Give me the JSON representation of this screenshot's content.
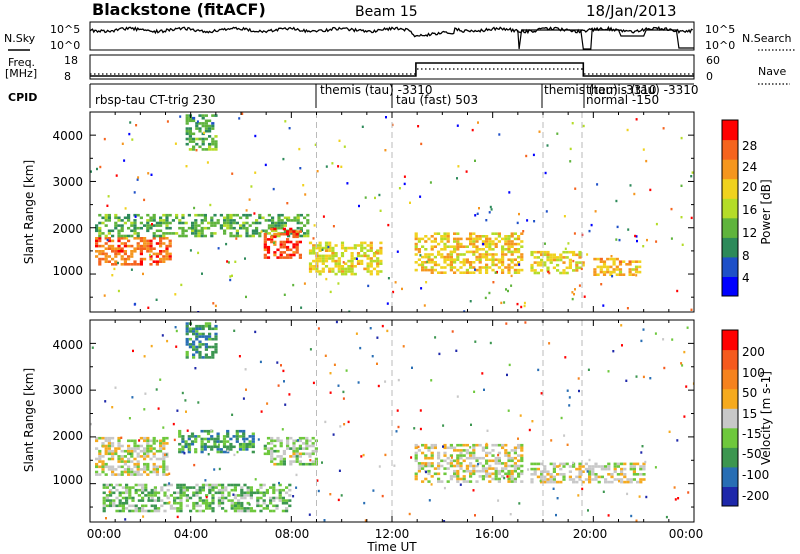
{
  "header": {
    "station": "Blackstone (fitACF)",
    "beam": "Beam 15",
    "date": "18/Jan/2013"
  },
  "left_labels": {
    "nsky": "N.Sky",
    "freq_line1": "Freq.",
    "freq_line2": "[MHz]",
    "cpid": "CPID"
  },
  "right_labels": {
    "nsearch": "N.Search",
    "nave": "Nave"
  },
  "noise_panel": {
    "left_ticks": [
      "10^5",
      "10^0"
    ],
    "right_ticks": [
      "10^5",
      "10^0"
    ]
  },
  "freq_panel": {
    "left_ticks": [
      "18",
      "8"
    ],
    "right_ticks": [
      "60",
      "0"
    ]
  },
  "cpid_segments": [
    {
      "label": "rbsp-tau CT-trig 230",
      "start_hour": 0.0
    },
    {
      "label": "themis (tau) -3310",
      "start_hour": 9.0
    },
    {
      "label": "tau (fast) 503",
      "start_hour": 12.0
    },
    {
      "label": "themis (tau) -3310",
      "start_hour": 18.0
    },
    {
      "label": "themis (tau) -3310",
      "start_hour": 19.55
    },
    {
      "label": "normal -150",
      "start_hour": 19.55
    }
  ],
  "x_axis": {
    "label": "Time UT",
    "ticks": [
      "00:00",
      "04:00",
      "08:00",
      "12:00",
      "16:00",
      "20:00",
      "00:00"
    ],
    "range_hours": [
      0,
      24
    ]
  },
  "power_panel": {
    "ylabel": "Slant Range [km]",
    "yticks": [
      "4000",
      "3000",
      "2000",
      "1000"
    ],
    "colorbar_label": "Power [dB]",
    "colorbar_ticks": [
      "28",
      "24",
      "20",
      "16",
      "12",
      "8",
      "4"
    ],
    "colors": [
      "#0000ff",
      "#1e50c8",
      "#2d8a5a",
      "#5fb43c",
      "#b4dc28",
      "#f0d21e",
      "#f5961e",
      "#f5641e",
      "#ff0000"
    ]
  },
  "velocity_panel": {
    "ylabel": "Slant Range [km]",
    "yticks": [
      "4000",
      "3000",
      "2000",
      "1000"
    ],
    "colorbar_label": "Velocity [m s-1]",
    "colorbar_ticks": [
      "200",
      "100",
      "50",
      "15",
      "-15",
      "-50",
      "-100",
      "-200"
    ],
    "colors": [
      "#1e28aa",
      "#286eb4",
      "#3c9650",
      "#6ec83c",
      "#c8c8c8",
      "#f5aa1e",
      "#f5821e",
      "#f55a1e",
      "#ff0000"
    ]
  },
  "chart_data": {
    "type": "heatmap",
    "title": "Blackstone (fitACF)",
    "xlabel": "Time UT",
    "ylabel": "Slant Range [km]",
    "xlim_hours": [
      0,
      24
    ],
    "ylim_km": [
      180,
      4500
    ],
    "panels": [
      {
        "name": "Power",
        "unit": "dB",
        "color_range": [
          0,
          30
        ],
        "features": [
          {
            "t0": 0.2,
            "t1": 3.2,
            "r0": 1200,
            "r1": 1800,
            "v": 24
          },
          {
            "t0": 0.2,
            "t1": 8.7,
            "r0": 1800,
            "r1": 2300,
            "v": 11
          },
          {
            "t0": 3.8,
            "t1": 5.0,
            "r0": 3700,
            "r1": 4450,
            "v": 10
          },
          {
            "t0": 6.9,
            "t1": 8.3,
            "r0": 1350,
            "r1": 2000,
            "v": 26
          },
          {
            "t0": 8.7,
            "t1": 11.5,
            "r0": 1000,
            "r1": 1700,
            "v": 17
          },
          {
            "t0": 12.9,
            "t1": 17.2,
            "r0": 1050,
            "r1": 1900,
            "v": 19
          },
          {
            "t0": 17.5,
            "t1": 19.6,
            "r0": 1050,
            "r1": 1500,
            "v": 18
          },
          {
            "t0": 20.0,
            "t1": 21.9,
            "r0": 1000,
            "r1": 1350,
            "v": 20
          }
        ]
      },
      {
        "name": "Velocity",
        "unit": "m s-1",
        "color_range": [
          -250,
          250
        ],
        "features": [
          {
            "t0": 0.2,
            "t1": 3.0,
            "r0": 1200,
            "r1": 2000,
            "v": 0
          },
          {
            "t0": 3.5,
            "t1": 6.5,
            "r0": 1650,
            "r1": 2150,
            "v": -110
          },
          {
            "t0": 3.8,
            "t1": 5.0,
            "r0": 3700,
            "r1": 4450,
            "v": -120
          },
          {
            "t0": 0.5,
            "t1": 8.0,
            "r0": 400,
            "r1": 1000,
            "v": -60
          },
          {
            "t0": 6.9,
            "t1": 9.0,
            "r0": 1400,
            "r1": 2000,
            "v": -30
          },
          {
            "t0": 12.9,
            "t1": 17.2,
            "r0": 1050,
            "r1": 1850,
            "v": 0
          },
          {
            "t0": 17.5,
            "t1": 22.0,
            "r0": 1050,
            "r1": 1450,
            "v": 0
          }
        ]
      }
    ]
  }
}
